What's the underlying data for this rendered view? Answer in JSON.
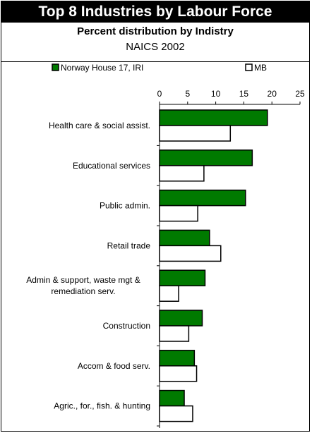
{
  "header": {
    "title": "Top 8 Industries by Labour Force",
    "subtitle": "Percent distribution by Indistry",
    "subtitle2": "NAICS 2002"
  },
  "colors": {
    "series1": "#007a00",
    "series2": "#ffffff",
    "stroke": "#000000"
  },
  "chart_data": {
    "type": "bar",
    "orientation": "horizontal",
    "categories": [
      "Health care & social assist.",
      "Educational services",
      "Public admin.",
      "Retail trade",
      "Admin & support, waste mgt & remediation serv.",
      "Construction",
      "Accom & food serv.",
      "Agric., for., fish. & hunting"
    ],
    "category_lines": [
      [
        "Health care & social assist."
      ],
      [
        "Educational services"
      ],
      [
        "Public admin."
      ],
      [
        "Retail trade"
      ],
      [
        "Admin & support, waste mgt &",
        "remediation serv."
      ],
      [
        "Construction"
      ],
      [
        "Accom & food serv."
      ],
      [
        "Agric., for., fish. & hunting"
      ]
    ],
    "series": [
      {
        "name": "Norway House 17, IRI",
        "values": [
          19.2,
          16.5,
          15.3,
          8.9,
          8.1,
          7.6,
          6.2,
          4.4
        ]
      },
      {
        "name": "MB",
        "values": [
          12.6,
          7.9,
          6.8,
          10.9,
          3.4,
          5.2,
          6.6,
          5.9
        ]
      }
    ],
    "xlim": [
      0,
      25
    ],
    "xticks": [
      0,
      5,
      10,
      15,
      20,
      25
    ],
    "legend": "top",
    "grid": false
  }
}
